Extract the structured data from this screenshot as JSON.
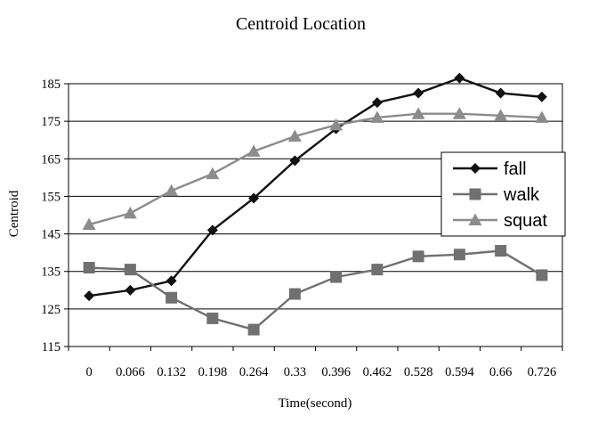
{
  "chart_data": {
    "type": "line",
    "title": "Centroid Location",
    "xlabel": "Time(second)",
    "ylabel": "Centroid",
    "categories": [
      "0",
      "0.066",
      "0.132",
      "0.198",
      "0.264",
      "0.33",
      "0.396",
      "0.462",
      "0.528",
      "0.594",
      "0.66",
      "0.726"
    ],
    "ylim": [
      115,
      185
    ],
    "yticks": [
      115,
      125,
      135,
      145,
      155,
      165,
      175,
      185
    ],
    "grid": "horizontal",
    "legend_position": "right",
    "series": [
      {
        "name": "fall",
        "marker": "diamond",
        "color": "#111111",
        "values": [
          128.5,
          130,
          132.5,
          146,
          154.5,
          164.5,
          173,
          180,
          182.5,
          186.5,
          182.5,
          181.5
        ]
      },
      {
        "name": "walk",
        "marker": "square",
        "color": "#707070",
        "values": [
          136,
          135.5,
          128,
          122.5,
          119.5,
          129,
          133.5,
          135.5,
          139,
          139.5,
          140.5,
          134
        ]
      },
      {
        "name": "squat",
        "marker": "triangle",
        "color": "#8c8c8c",
        "values": [
          147.5,
          150.5,
          156.5,
          161,
          167,
          171,
          174,
          176,
          177,
          177,
          176.5,
          176
        ]
      }
    ]
  }
}
